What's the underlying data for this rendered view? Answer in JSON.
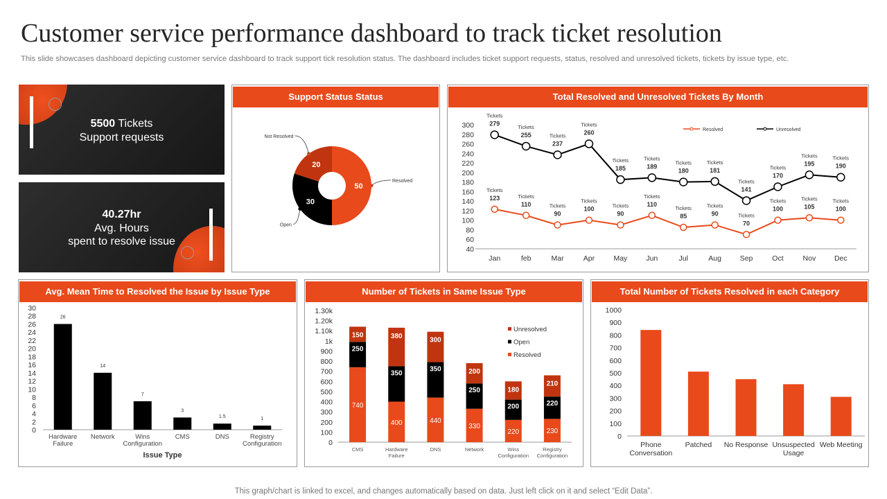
{
  "page": {
    "title": "Customer service performance dashboard to track ticket resolution",
    "subtitle": "This slide showcases dashboard depicting customer service dashboard to track support tick resolution status. The dashboard includes ticket support requests, status, resolved and unresolved tickets, tickets by issue type, etc.",
    "footer": "This graph/chart is linked to excel,  and changes automatically based on data. Just left click on it and select “Edit Data”."
  },
  "kpis": {
    "tickets_value": "5500",
    "tickets_unit": " Tickets",
    "tickets_label": "Support requests",
    "hours_value": "40.27hr",
    "hours_label1": "Avg. Hours",
    "hours_label2": "spent to resolve issue"
  },
  "colors": {
    "accent": "#e84a1b",
    "dark_red": "#c0350f",
    "black": "#000000"
  },
  "chart_data": [
    {
      "type": "pie",
      "title": "Support Status Status",
      "slices": [
        {
          "name": "Resolved",
          "value": 50,
          "color": "#e84a1b"
        },
        {
          "name": "Open",
          "value": 30,
          "color": "#000000"
        },
        {
          "name": "Not Resolved",
          "value": 20,
          "color": "#c0350f"
        }
      ]
    },
    {
      "type": "line",
      "title": "Total Resolved and Unresolved Tickets By Month",
      "categories": [
        "Jan",
        "feb",
        "Mar",
        "Apr",
        "May",
        "Jun",
        "Jul",
        "Aug",
        "Sep",
        "Oct",
        "Nov",
        "Dec"
      ],
      "ylim": [
        40,
        300
      ],
      "yticks": [
        40,
        60,
        80,
        100,
        120,
        140,
        160,
        180,
        200,
        220,
        240,
        260,
        280,
        300
      ],
      "point_label": "Tickets",
      "series": [
        {
          "name": "Resolved",
          "color": "#e84a1b",
          "values": [
            123,
            110,
            90,
            100,
            90,
            110,
            85,
            90,
            70,
            100,
            105,
            100
          ]
        },
        {
          "name": "Unresolved",
          "color": "#000000",
          "values": [
            279,
            255,
            237,
            260,
            185,
            189,
            180,
            181,
            141,
            170,
            195,
            190
          ]
        }
      ]
    },
    {
      "type": "bar",
      "title": "Avg. Mean Time to Resolved the Issue by Issue Type",
      "categories": [
        "Hardware\nFailure",
        "Network",
        "Wins\nConfiguration",
        "CMS",
        "DNS",
        "Registry\nConfiguration"
      ],
      "values": [
        26,
        14,
        7,
        3,
        1.5,
        1
      ],
      "xlabel": "Issue Type",
      "ylim": [
        0,
        30
      ],
      "yticks": [
        0,
        2,
        4,
        6,
        8,
        10,
        12,
        14,
        16,
        18,
        20,
        22,
        24,
        26,
        28,
        30
      ],
      "color": "#000000"
    },
    {
      "type": "bar",
      "stacked": true,
      "title": "Number of Tickets in Same Issue Type",
      "categories": [
        "CMS",
        "Hardware\nFailure",
        "DNS",
        "Network",
        "Wins\nConfiguration",
        "Registry\nConfiguration"
      ],
      "ylim": [
        0,
        1300
      ],
      "yticks": [
        0,
        100,
        200,
        300,
        400,
        500,
        600,
        700,
        800,
        900,
        1000,
        1100,
        1200,
        1300
      ],
      "ytick_labels": [
        "0",
        "100",
        "200",
        "300",
        "400",
        "500",
        "600",
        "700",
        "800",
        "900",
        "1k",
        "1.10k",
        "1.20k",
        "1.30k"
      ],
      "series": [
        {
          "name": "Resolved",
          "color": "#e84a1b",
          "values": [
            740,
            400,
            440,
            330,
            220,
            230
          ]
        },
        {
          "name": "Open",
          "color": "#000000",
          "values": [
            250,
            350,
            350,
            250,
            200,
            220
          ]
        },
        {
          "name": "Unresolved",
          "color": "#c0350f",
          "values": [
            150,
            380,
            300,
            200,
            180,
            210
          ]
        }
      ],
      "legend_order": [
        "Unresolved",
        "Open",
        "Resolved"
      ]
    },
    {
      "type": "bar",
      "title": "Total Number of Tickets Resolved in each Category",
      "categories": [
        "Phone\nConversation",
        "Patched",
        "No Response",
        "Unsuspected\nUsage",
        "Web Meeting"
      ],
      "values": [
        840,
        510,
        450,
        410,
        310
      ],
      "ylim": [
        0,
        1000
      ],
      "yticks": [
        0,
        100,
        200,
        300,
        400,
        500,
        600,
        700,
        800,
        900,
        1000
      ],
      "color": "#e84a1b"
    }
  ]
}
